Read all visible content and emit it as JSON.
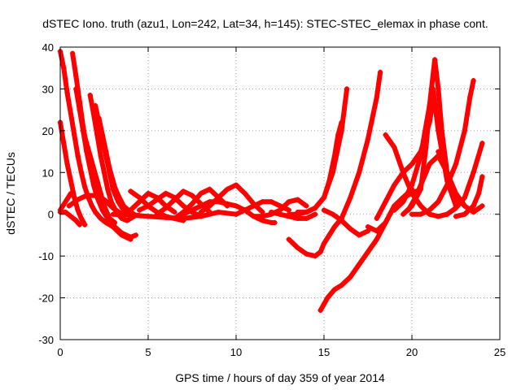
{
  "chart_data": {
    "type": "scatter",
    "title": "dSTEC Iono. truth (azu1, Lon=242, Lat=34, h=145): STEC-STEC_elemax in phase cont.",
    "xlabel": "GPS time / hours of day 359 of year 2014",
    "ylabel": "dSTEC  / TECUs",
    "xlim": [
      0,
      25
    ],
    "ylim": [
      -30,
      40
    ],
    "xticks": [
      "0",
      "5",
      "10",
      "15",
      "20",
      "25"
    ],
    "yticks": [
      "-30",
      "-20",
      "-10",
      "0",
      "10",
      "20",
      "30",
      "40"
    ],
    "grid": true,
    "marker": "plus",
    "color": "#ff0000",
    "series": [
      {
        "x": [
          0.0,
          0.2,
          0.4,
          0.6,
          0.8,
          1.0,
          1.2,
          1.4,
          1.6,
          1.8,
          2.0,
          2.3,
          2.6,
          3.0,
          3.5,
          4.0
        ],
        "y": [
          39,
          35,
          29,
          24,
          19,
          14,
          10,
          6.5,
          4,
          2,
          0.5,
          -1,
          -2,
          -3,
          -4.5,
          -5.5
        ]
      },
      {
        "x": [
          0.0,
          0.2,
          0.4,
          0.6,
          0.8,
          1.0,
          1.2,
          1.4
        ],
        "y": [
          22,
          17,
          12,
          8,
          4,
          1,
          -1,
          -2.5
        ]
      },
      {
        "x": [
          0.0,
          0.3,
          0.6,
          0.9,
          1.1
        ],
        "y": [
          0.5,
          0.5,
          -0.5,
          -1.5,
          -2.5
        ]
      },
      {
        "x": [
          0.0,
          0.3,
          0.6
        ],
        "y": [
          1,
          3,
          5
        ]
      },
      {
        "x": [
          0.7,
          0.9,
          1.1,
          1.3,
          1.5,
          1.7,
          1.9,
          2.2,
          2.5,
          2.8,
          3.1
        ],
        "y": [
          38.5,
          33,
          27,
          21,
          16,
          12,
          8,
          4,
          1,
          -1,
          -2
        ]
      },
      {
        "x": [
          0.9,
          1.1,
          1.3,
          1.5,
          1.7,
          1.9,
          2.1,
          2.4,
          2.7,
          3.0,
          3.5,
          4.0
        ],
        "y": [
          30,
          25,
          20,
          15,
          11,
          7,
          4,
          1,
          -1,
          -3,
          -5,
          -6
        ]
      },
      {
        "x": [
          1.3,
          1.5,
          1.7,
          1.9,
          2.1,
          2.3,
          2.5,
          2.8,
          3.1,
          3.5,
          4.0,
          4.3
        ],
        "y": [
          20,
          17,
          14,
          11,
          8,
          5,
          2,
          -1,
          -3,
          -4.5,
          -5.5,
          -5
        ]
      },
      {
        "x": [
          1.7,
          1.9,
          2.1,
          2.3,
          2.5,
          2.7,
          2.9,
          3.2,
          3.5,
          3.8,
          4.2
        ],
        "y": [
          28.5,
          24,
          19,
          14,
          10,
          6,
          3,
          0.5,
          -1,
          -1.5,
          -0.5
        ]
      },
      {
        "x": [
          2.0,
          2.2,
          2.4,
          2.6,
          2.8,
          3.0,
          3.3,
          3.6,
          4.0,
          4.5
        ],
        "y": [
          26,
          22,
          18,
          14,
          10,
          6,
          3,
          1,
          0,
          -0.3
        ]
      },
      {
        "x": [
          2.2,
          2.4,
          2.6,
          2.8,
          3.0,
          3.2,
          3.5,
          3.8,
          4.2
        ],
        "y": [
          23,
          19,
          15,
          11,
          8,
          5,
          2.5,
          1,
          0
        ]
      },
      {
        "x": [
          2.4,
          2.6,
          2.8,
          3.0,
          3.3,
          3.6,
          4.0
        ],
        "y": [
          18,
          14,
          10.5,
          7.5,
          4.5,
          2,
          0.5
        ]
      },
      {
        "x": [
          0.5,
          1.0,
          1.5,
          2.0,
          2.5,
          3.0,
          3.5
        ],
        "y": [
          2,
          3.5,
          4.5,
          4.5,
          3.5,
          1.5,
          0
        ]
      },
      {
        "x": [
          3.5,
          4.0,
          4.5,
          5.0,
          5.5,
          6.0,
          6.5
        ],
        "y": [
          -0.5,
          1,
          3,
          5,
          4,
          2,
          0.5
        ]
      },
      {
        "x": [
          3.0,
          4.0,
          5.0,
          6.0,
          7.0,
          8.0,
          9.0,
          10.0
        ],
        "y": [
          0,
          -0.2,
          -0.5,
          -0.8,
          -1,
          -0.5,
          0.5,
          0
        ]
      },
      {
        "x": [
          4.0,
          4.5,
          5.0,
          5.5,
          6.0,
          6.5,
          7.0
        ],
        "y": [
          5.5,
          4,
          2,
          0.5,
          -0.5,
          -1,
          -1.5
        ]
      },
      {
        "x": [
          4.5,
          5.0,
          5.5,
          6.0,
          6.5,
          7.0,
          7.5,
          8.0
        ],
        "y": [
          1,
          2,
          3.5,
          5,
          4,
          2,
          0.5,
          -0.5
        ]
      },
      {
        "x": [
          5.5,
          6.0,
          6.5,
          7.0,
          7.5,
          8.0,
          8.5
        ],
        "y": [
          0,
          1.5,
          3.5,
          5.5,
          4.5,
          2.5,
          0.5
        ]
      },
      {
        "x": [
          6.5,
          7.0,
          7.5,
          8.0,
          8.5,
          9.0,
          9.5
        ],
        "y": [
          -1,
          0.5,
          2.5,
          5,
          6,
          4,
          2
        ]
      },
      {
        "x": [
          7.0,
          7.5,
          8.0,
          8.5,
          9.0,
          9.5,
          10.0,
          10.5,
          11.0,
          11.5,
          12.0,
          12.2
        ],
        "y": [
          0,
          1,
          2,
          3,
          3,
          2.5,
          2,
          1,
          -0.5,
          -1.5,
          -2,
          -2
        ]
      },
      {
        "x": [
          8.0,
          8.5,
          9.0,
          9.5,
          10.0,
          10.5,
          11.0,
          11.5
        ],
        "y": [
          0.5,
          2,
          4,
          6,
          7,
          5,
          2.5,
          0.5
        ]
      },
      {
        "x": [
          10.0,
          10.5,
          11.0,
          11.5,
          12.0,
          12.5,
          13.0
        ],
        "y": [
          0,
          1,
          2,
          3,
          3,
          2,
          1
        ]
      },
      {
        "x": [
          11.0,
          11.5,
          12.0,
          12.5,
          13.0,
          13.5,
          14.0
        ],
        "y": [
          -0.5,
          -0.5,
          0,
          1,
          3,
          3.5,
          2
        ]
      },
      {
        "x": [
          12.0,
          12.5,
          13.0,
          13.5,
          14.0,
          14.5
        ],
        "y": [
          0.5,
          0,
          -0.5,
          -1,
          -1,
          0
        ]
      },
      {
        "x": [
          13.0,
          13.5,
          14.0,
          14.5,
          15.0,
          15.3,
          15.6,
          15.8,
          16.0
        ],
        "y": [
          0,
          0,
          0.5,
          1.5,
          4,
          8,
          14,
          19,
          22
        ]
      },
      {
        "x": [
          13.5,
          14.0,
          14.5,
          15.0,
          15.5,
          16.0,
          16.3
        ],
        "y": [
          0.5,
          0.5,
          1.5,
          4,
          10,
          20,
          30
        ]
      },
      {
        "x": [
          13.0,
          13.5,
          14.0,
          14.5,
          14.8,
          15.0,
          15.3,
          15.6,
          16.0
        ],
        "y": [
          -6,
          -8,
          -9.5,
          -10,
          -9,
          -7,
          -5,
          -3,
          -1
        ]
      },
      {
        "x": [
          15.0,
          15.5,
          16.0,
          16.5,
          17.0,
          17.5
        ],
        "y": [
          1,
          0,
          -1.5,
          -3.5,
          -5,
          -4
        ]
      },
      {
        "x": [
          14.8,
          15.2,
          15.6,
          16.0,
          16.5,
          17.0,
          17.5,
          18.0,
          18.5,
          19.0,
          19.5,
          20.0
        ],
        "y": [
          -23,
          -20,
          -18,
          -17,
          -15,
          -12,
          -9,
          -6,
          -2,
          2,
          4,
          6
        ]
      },
      {
        "x": [
          16.0,
          16.5,
          17.0,
          17.5,
          18.0,
          18.2
        ],
        "y": [
          -1,
          4,
          10,
          18,
          28,
          34
        ]
      },
      {
        "x": [
          17.5,
          18.0,
          18.5,
          19.0,
          19.5,
          20.0,
          20.5
        ],
        "y": [
          -3,
          -4,
          -2,
          2,
          4,
          5,
          6
        ]
      },
      {
        "x": [
          18.0,
          18.5,
          19.0,
          19.5,
          20.0,
          20.5,
          21.0,
          21.2
        ],
        "y": [
          -1,
          3,
          7,
          10,
          12,
          15,
          22,
          27
        ]
      },
      {
        "x": [
          18.5,
          19.0,
          19.5,
          20.0,
          20.5,
          21.0,
          21.5,
          22.0
        ],
        "y": [
          19,
          16,
          10,
          5,
          2,
          0,
          -0.5,
          0
        ]
      },
      {
        "x": [
          19.0,
          19.5,
          20.0,
          20.5,
          21.0,
          21.3,
          21.5,
          21.7,
          22.0,
          22.5,
          23.0
        ],
        "y": [
          1,
          3,
          7,
          14,
          26,
          37,
          30,
          20,
          10,
          4,
          2
        ]
      },
      {
        "x": [
          19.5,
          20.0,
          20.5,
          20.8,
          21.0,
          21.2,
          21.5,
          22.0,
          22.5
        ],
        "y": [
          0,
          2,
          6,
          16,
          25,
          30,
          20,
          8,
          2
        ]
      },
      {
        "x": [
          20.0,
          20.5,
          21.0,
          21.5,
          22.0,
          22.5,
          23.0,
          23.3,
          23.5
        ],
        "y": [
          0,
          0,
          1,
          3,
          7,
          12,
          20,
          28,
          32
        ]
      },
      {
        "x": [
          21.5,
          22.0,
          22.5,
          23.0,
          23.5,
          24.0
        ],
        "y": [
          15,
          10,
          5,
          2,
          0.5,
          2
        ]
      },
      {
        "x": [
          22.0,
          22.5,
          23.0,
          23.5,
          24.0
        ],
        "y": [
          0,
          1.5,
          4,
          10,
          17
        ]
      },
      {
        "x": [
          19.8,
          20.2,
          20.6,
          21.0,
          21.5,
          22.0
        ],
        "y": [
          1,
          4,
          8,
          12,
          14,
          10
        ]
      },
      {
        "x": [
          22.5,
          23.0,
          23.5,
          23.8,
          24.0
        ],
        "y": [
          -0.5,
          0,
          2,
          5,
          9
        ]
      }
    ]
  }
}
